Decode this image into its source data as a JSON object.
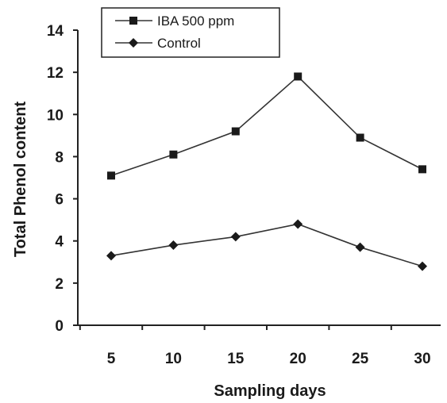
{
  "chart_data": {
    "type": "line",
    "title": "",
    "xlabel": "Sampling days",
    "ylabel": "Total Phenol content",
    "x": [
      5,
      10,
      15,
      20,
      25,
      30
    ],
    "ylim": [
      0,
      14
    ],
    "yticks": [
      0,
      2,
      4,
      6,
      8,
      10,
      12,
      14
    ],
    "grid": false,
    "legend_position": "top-left",
    "series": [
      {
        "name": "IBA 500 ppm",
        "marker": "square",
        "color": "#1a1a1a",
        "values": [
          7.1,
          8.1,
          9.2,
          11.8,
          8.9,
          7.4
        ]
      },
      {
        "name": "Control",
        "marker": "diamond",
        "color": "#1a1a1a",
        "values": [
          3.3,
          3.8,
          4.2,
          4.8,
          3.7,
          2.8
        ]
      }
    ]
  }
}
